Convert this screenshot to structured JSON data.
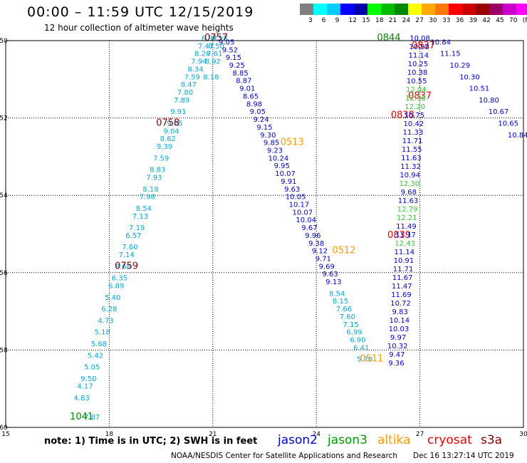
{
  "title": "00:00 – 11:59 UTC 12/15/2019",
  "subtitle": "12 hour collection of altimeter wave heights",
  "colorbar": {
    "colors": [
      "#7f7f7f",
      "#00ffff",
      "#00ccff",
      "#0000ff",
      "#0000aa",
      "#00ff00",
      "#00bb00",
      "#008800",
      "#ffff00",
      "#ffaa00",
      "#ff7700",
      "#ff0000",
      "#cc0000",
      "#990000",
      "#990066",
      "#cc00cc",
      "#ff00ff",
      "#000000"
    ],
    "labels": [
      "3",
      "6",
      "9",
      "12",
      "15",
      "18",
      "21",
      "24",
      "27",
      "30",
      "33",
      "36",
      "39",
      "42",
      "45",
      "70",
      "(ft)"
    ]
  },
  "chart_data": {
    "type": "scatter",
    "x_ticks": [
      "15",
      "18",
      "21",
      "24",
      "27",
      "30"
    ],
    "y_ticks": [
      "-50",
      "-52",
      "-54",
      "-56",
      "-58",
      "-60"
    ],
    "xlim": [
      15,
      30
    ],
    "ylim": [
      -60,
      -50
    ],
    "passes": [
      {
        "points": [
          [
            17.5,
            -59.8,
            "7.87"
          ],
          [
            17.2,
            -59.3,
            "4.83"
          ],
          [
            17.3,
            -59.0,
            "4.17"
          ],
          [
            17.4,
            -58.8,
            "9.50"
          ],
          [
            17.5,
            -58.5,
            "5.05"
          ],
          [
            17.6,
            -58.2,
            "5.42"
          ],
          [
            17.7,
            -57.9,
            "5.68"
          ],
          [
            17.8,
            -57.6,
            "5.18"
          ],
          [
            17.9,
            -57.3,
            "4.73"
          ],
          [
            18.0,
            -57.0,
            "6.28"
          ],
          [
            18.1,
            -56.7,
            "5.40"
          ],
          [
            18.2,
            -56.4,
            "6.89"
          ],
          [
            18.3,
            -56.2,
            "6.35"
          ],
          [
            18.4,
            -55.9,
            "8.68"
          ],
          [
            18.5,
            -55.6,
            "7.14"
          ],
          [
            18.6,
            -55.4,
            "7.60"
          ],
          [
            18.7,
            -55.1,
            "6.57"
          ],
          [
            18.8,
            -54.9,
            "7.19"
          ],
          [
            18.9,
            -54.6,
            "7.13"
          ],
          [
            19.0,
            -54.4,
            "8.54"
          ],
          [
            19.1,
            -54.1,
            "7.98"
          ],
          [
            19.2,
            -53.9,
            "8.18"
          ],
          [
            19.3,
            -53.6,
            "7.93"
          ],
          [
            19.4,
            -53.4,
            "8.83"
          ],
          [
            19.5,
            -53.1,
            "7.59"
          ],
          [
            19.6,
            -52.8,
            "9.39"
          ],
          [
            19.7,
            -52.6,
            "8.62"
          ],
          [
            19.8,
            -52.4,
            "9.04"
          ],
          [
            19.9,
            -52.2,
            "9.05"
          ],
          [
            20.0,
            -51.9,
            "9.91"
          ],
          [
            20.1,
            -51.6,
            "7.89"
          ],
          [
            20.2,
            -51.4,
            "7.80"
          ],
          [
            20.3,
            -51.2,
            "8.47"
          ],
          [
            20.4,
            -51.0,
            "7.59"
          ],
          [
            20.5,
            -50.8,
            "8.34"
          ],
          [
            20.6,
            -50.6,
            "7.94"
          ],
          [
            20.7,
            -50.4,
            "8.26"
          ],
          [
            20.8,
            -50.2,
            "7.47"
          ],
          [
            20.9,
            -50.0,
            "6.92"
          ],
          [
            20.95,
            -51.0,
            "8.18"
          ],
          [
            21.0,
            -50.6,
            "8.92"
          ],
          [
            21.05,
            -50.4,
            "7.61"
          ],
          [
            21.1,
            -50.2,
            "8.50"
          ],
          [
            21.2,
            -50.0,
            "8.58"
          ]
        ],
        "color": "cyan"
      },
      {
        "points": [
          [
            21.4,
            -50.1,
            "9.05"
          ],
          [
            21.5,
            -50.3,
            "9.52"
          ],
          [
            21.6,
            -50.5,
            "9.15"
          ],
          [
            21.7,
            -50.7,
            "9.25"
          ],
          [
            21.8,
            -50.9,
            "8.85"
          ],
          [
            21.9,
            -51.1,
            "8.87"
          ],
          [
            22.0,
            -51.3,
            "9.01"
          ],
          [
            22.1,
            -51.5,
            "8.65"
          ],
          [
            22.2,
            -51.7,
            "8.98"
          ],
          [
            22.3,
            -51.9,
            "9.05"
          ],
          [
            22.4,
            -52.1,
            "9.24"
          ],
          [
            22.5,
            -52.3,
            "9.15"
          ],
          [
            22.6,
            -52.5,
            "9.30"
          ],
          [
            22.7,
            -52.7,
            "9.85"
          ],
          [
            22.8,
            -52.9,
            "9.23"
          ],
          [
            22.9,
            -53.1,
            "10.24"
          ],
          [
            23.0,
            -53.3,
            "9.95"
          ],
          [
            23.1,
            -53.5,
            "10.07"
          ],
          [
            23.2,
            -53.7,
            "9.91"
          ],
          [
            23.3,
            -53.9,
            "9.63"
          ],
          [
            23.4,
            -54.1,
            "10.05"
          ],
          [
            23.5,
            -54.3,
            "10.17"
          ],
          [
            23.6,
            -54.5,
            "10.07"
          ],
          [
            23.7,
            -54.7,
            "10.04"
          ],
          [
            23.8,
            -54.9,
            "9.67"
          ],
          [
            23.9,
            -55.1,
            "9.96"
          ],
          [
            24.0,
            -55.3,
            "9.38"
          ],
          [
            24.1,
            -55.5,
            "9.12"
          ],
          [
            24.2,
            -55.7,
            "9.71"
          ],
          [
            24.3,
            -55.9,
            "9.69"
          ],
          [
            24.4,
            -56.1,
            "9.63"
          ],
          [
            24.5,
            -56.3,
            "9.13"
          ]
        ],
        "color": "blue"
      },
      {
        "points": [
          [
            24.6,
            -56.6,
            "8.54"
          ],
          [
            24.7,
            -56.8,
            "8.15"
          ],
          [
            24.8,
            -57.0,
            "7.66"
          ],
          [
            24.9,
            -57.2,
            "7.60"
          ],
          [
            25.0,
            -57.4,
            "7.15"
          ],
          [
            25.1,
            -57.6,
            "6.99"
          ],
          [
            25.2,
            -57.8,
            "6.90"
          ],
          [
            25.3,
            -58.0,
            "6.41"
          ],
          [
            25.4,
            -58.3,
            "5.70"
          ]
        ],
        "color": "cyan"
      }
    ],
    "pass_times": [
      {
        "x": 21.1,
        "y": -50.0,
        "label": "0757",
        "color": "#880000"
      },
      {
        "x": 19.7,
        "y": -52.2,
        "label": "0758",
        "color": "#880000"
      },
      {
        "x": 18.5,
        "y": -55.9,
        "label": "0759",
        "color": "#880000"
      },
      {
        "x": 23.3,
        "y": -52.7,
        "label": "0513",
        "color": "#ff9900"
      },
      {
        "x": 24.8,
        "y": -55.5,
        "label": "0512",
        "color": "#ff9900"
      },
      {
        "x": 25.6,
        "y": -58.3,
        "label": "0511",
        "color": "#ff9900"
      },
      {
        "x": 26.1,
        "y": -50.0,
        "label": "0844",
        "color": "#008800"
      },
      {
        "x": 17.2,
        "y": -59.8,
        "label": "1041",
        "color": "#008800"
      },
      {
        "x": 27.1,
        "y": -50.2,
        "label": "0837",
        "color": "#ee0000"
      },
      {
        "x": 27.0,
        "y": -51.5,
        "label": "0837",
        "color": "#ee0000"
      },
      {
        "x": 26.5,
        "y": -52.0,
        "label": "0838",
        "color": "#ee0000"
      },
      {
        "x": 26.4,
        "y": -55.1,
        "label": "0839",
        "color": "#ee0000"
      }
    ]
  },
  "east_values": [
    {
      "t": "10.08",
      "c": "blue"
    },
    {
      "t": "10.98",
      "c": "blue"
    },
    {
      "t": "11.14",
      "c": "blue"
    },
    {
      "t": "10.25",
      "c": "blue"
    },
    {
      "t": "10.38",
      "c": "blue"
    },
    {
      "t": "10.55",
      "c": "blue"
    },
    {
      "t": "12.04",
      "c": "green"
    },
    {
      "t": "12.38",
      "c": "green"
    },
    {
      "t": "12.20",
      "c": "green"
    },
    {
      "t": "10.75",
      "c": "blue"
    },
    {
      "t": "10.42",
      "c": "blue"
    },
    {
      "t": "11.33",
      "c": "blue"
    },
    {
      "t": "11.71",
      "c": "blue"
    },
    {
      "t": "11.55",
      "c": "blue"
    },
    {
      "t": "11.63",
      "c": "blue"
    },
    {
      "t": "11.32",
      "c": "blue"
    },
    {
      "t": "10.94",
      "c": "blue"
    },
    {
      "t": "12.30",
      "c": "green"
    },
    {
      "t": "9.68",
      "c": "blue"
    },
    {
      "t": "11.63",
      "c": "blue"
    },
    {
      "t": "12.79",
      "c": "green"
    },
    {
      "t": "12.21",
      "c": "green"
    },
    {
      "t": "11.49",
      "c": "blue"
    },
    {
      "t": "11.17",
      "c": "blue"
    },
    {
      "t": "12.43",
      "c": "green"
    },
    {
      "t": "11.14",
      "c": "blue"
    },
    {
      "t": "10.91",
      "c": "blue"
    },
    {
      "t": "11.71",
      "c": "blue"
    },
    {
      "t": "11.67",
      "c": "blue"
    },
    {
      "t": "11.47",
      "c": "blue"
    },
    {
      "t": "11.69",
      "c": "blue"
    },
    {
      "t": "10.72",
      "c": "blue"
    },
    {
      "t": "9.83",
      "c": "blue"
    },
    {
      "t": "10.14",
      "c": "blue"
    },
    {
      "t": "10.03",
      "c": "blue"
    },
    {
      "t": "9.97",
      "c": "blue"
    },
    {
      "t": "10.32",
      "c": "blue"
    },
    {
      "t": "9.47",
      "c": "blue"
    },
    {
      "t": "9.36",
      "c": "blue"
    }
  ],
  "ne_values": [
    "10.84",
    "11.15",
    "10.29",
    "10.30",
    "10.51",
    "10.80",
    "10.67",
    "10.65",
    "10.84"
  ],
  "note": "note: 1) Time is in UTC; 2) SWH is in feet",
  "satellites": [
    {
      "name": "jason2",
      "color": "#0000cc"
    },
    {
      "name": "jason3",
      "color": "#009900"
    },
    {
      "name": "altika",
      "color": "#ff9900"
    },
    {
      "name": "cryosat",
      "color": "#ee0000"
    },
    {
      "name": "s3a",
      "color": "#880000"
    }
  ],
  "footer": "NOAA/NESDIS Center for Satellite Applications and Research",
  "footer_time": "Dec 16 13:27:14 UTC 2019"
}
